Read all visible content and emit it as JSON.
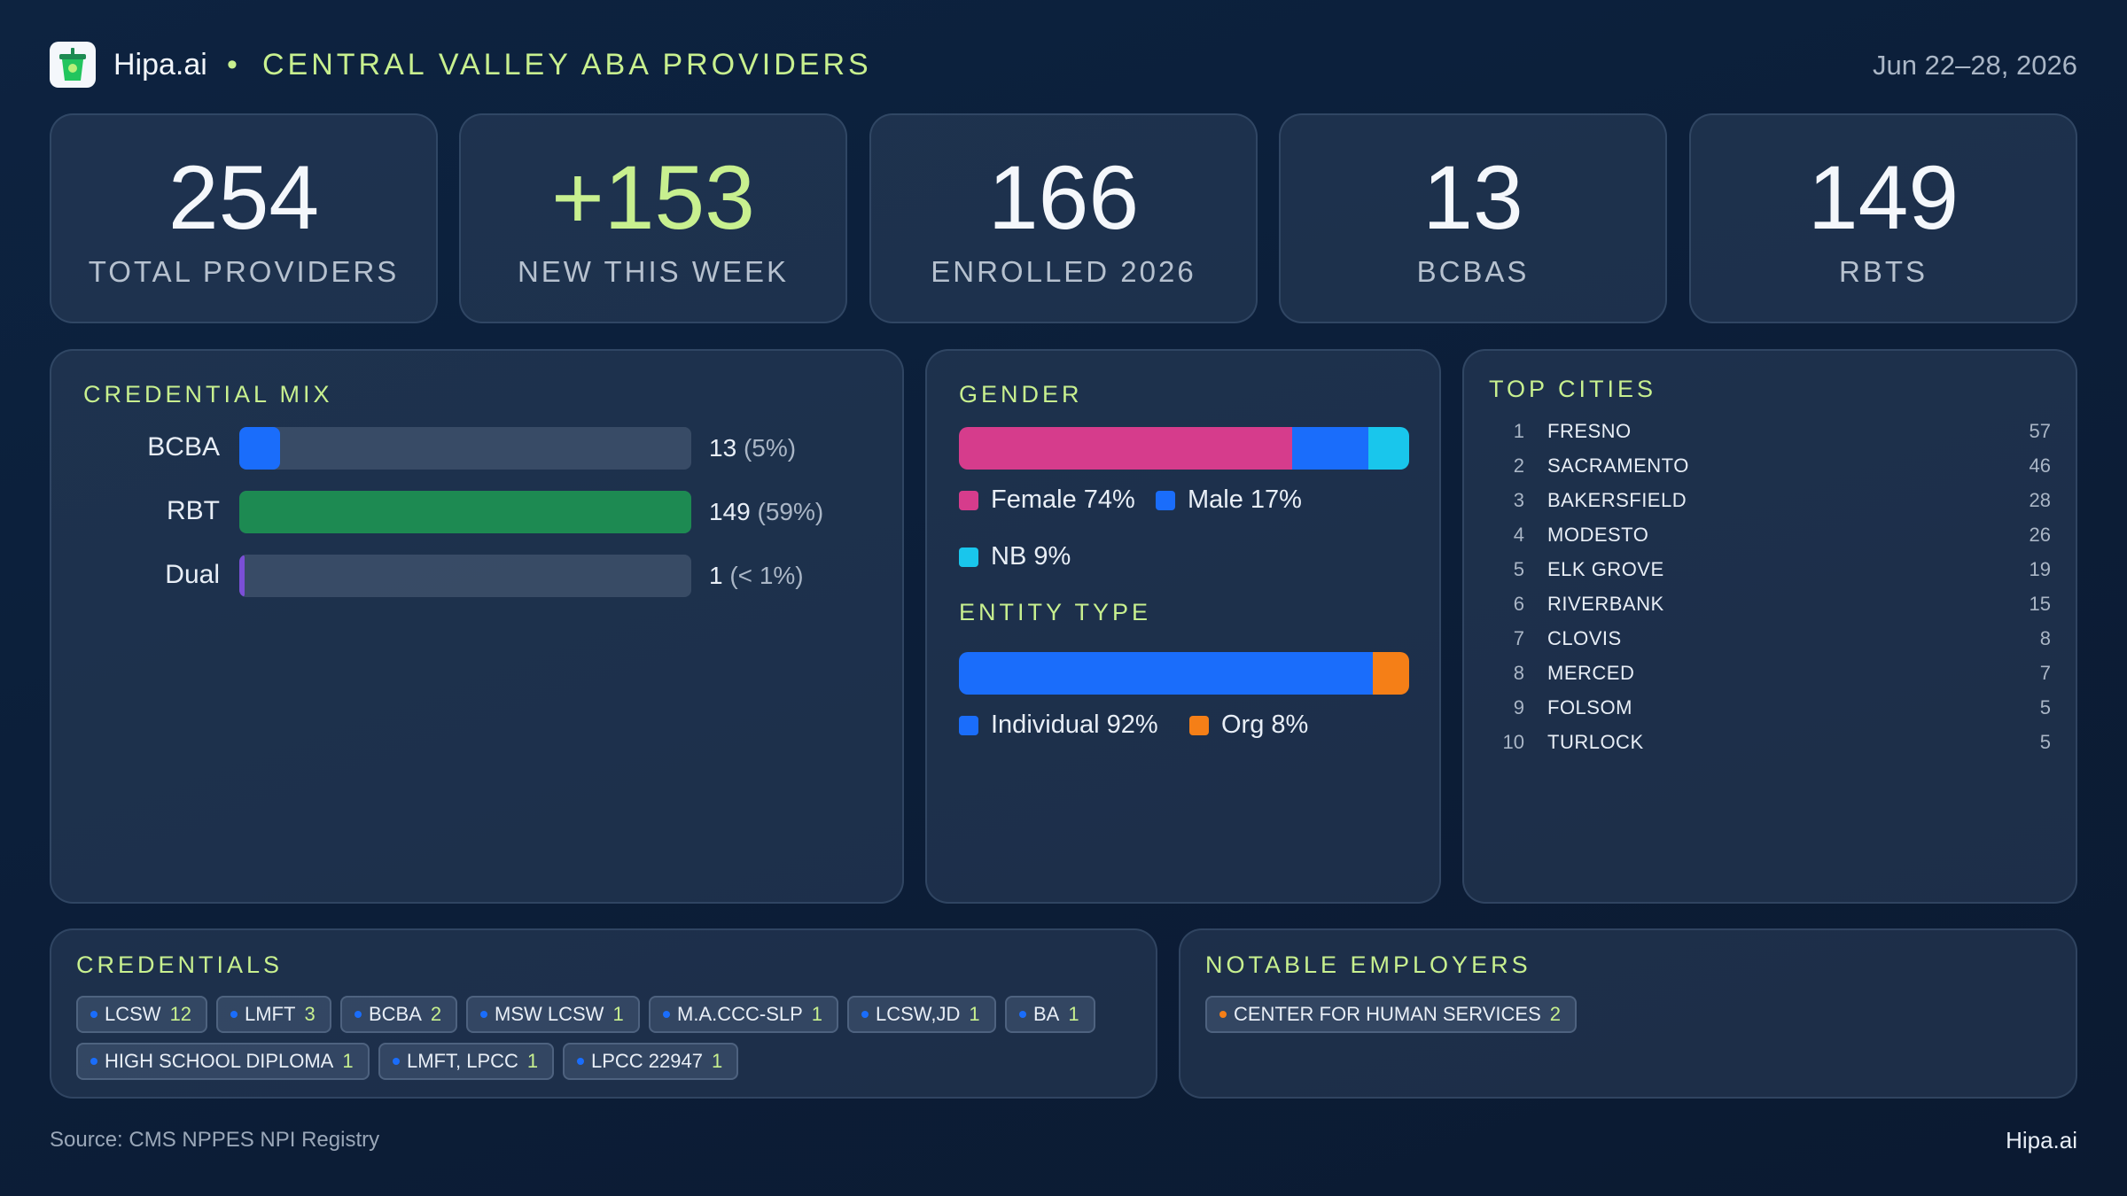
{
  "header": {
    "brand": "Hipa.ai",
    "separator": "•",
    "title": "CENTRAL VALLEY ABA PROVIDERS",
    "date_range": "Jun 22–28, 2026",
    "logo_icon": "cup-icon"
  },
  "kpis": [
    {
      "value": "254",
      "label": "TOTAL PROVIDERS"
    },
    {
      "value": "+153",
      "label": "NEW THIS WEEK"
    },
    {
      "value": "166",
      "label": "ENROLLED 2026"
    },
    {
      "value": "13",
      "label": "BCBAS"
    },
    {
      "value": "149",
      "label": "RBTS"
    }
  ],
  "credential_mix": {
    "title": "CREDENTIAL MIX",
    "rows": [
      {
        "label": "BCBA",
        "count": "13",
        "pct": "(5%)",
        "fraction": 0.09,
        "color": "#1a6dfb"
      },
      {
        "label": "RBT",
        "count": "149",
        "pct": "(59%)",
        "fraction": 1.0,
        "color": "#1d8a52"
      },
      {
        "label": "Dual",
        "count": "1",
        "pct": "(< 1%)",
        "fraction": 0.012,
        "color": "#7b4fd6"
      }
    ]
  },
  "gender": {
    "title": "GENDER",
    "segments": [
      {
        "label": "Female 74%",
        "share": 74,
        "color": "#d63c8c"
      },
      {
        "label": "Male 17%",
        "share": 17,
        "color": "#1a6dfb"
      },
      {
        "label": "NB 9%",
        "share": 9,
        "color": "#19c6ec"
      }
    ]
  },
  "entity_type": {
    "title": "ENTITY TYPE",
    "segments": [
      {
        "label": "Individual 92%",
        "share": 92,
        "color": "#1a6dfb"
      },
      {
        "label": "Org 8%",
        "share": 8,
        "color": "#f57f17"
      }
    ]
  },
  "top_cities": {
    "title": "TOP CITIES",
    "items": [
      {
        "rank": "1",
        "name": "FRESNO",
        "count": "57"
      },
      {
        "rank": "2",
        "name": "SACRAMENTO",
        "count": "46"
      },
      {
        "rank": "3",
        "name": "BAKERSFIELD",
        "count": "28"
      },
      {
        "rank": "4",
        "name": "MODESTO",
        "count": "26"
      },
      {
        "rank": "5",
        "name": "ELK GROVE",
        "count": "19"
      },
      {
        "rank": "6",
        "name": "RIVERBANK",
        "count": "15"
      },
      {
        "rank": "7",
        "name": "CLOVIS",
        "count": "8"
      },
      {
        "rank": "8",
        "name": "MERCED",
        "count": "7"
      },
      {
        "rank": "9",
        "name": "FOLSOM",
        "count": "5"
      },
      {
        "rank": "10",
        "name": "TURLOCK",
        "count": "5"
      }
    ]
  },
  "credentials": {
    "title": "CREDENTIALS",
    "chips": [
      {
        "label": "LCSW",
        "count": "12"
      },
      {
        "label": "LMFT",
        "count": "3"
      },
      {
        "label": "BCBA",
        "count": "2"
      },
      {
        "label": "MSW LCSW",
        "count": "1"
      },
      {
        "label": "M.A.CCC-SLP",
        "count": "1"
      },
      {
        "label": "LCSW,JD",
        "count": "1"
      },
      {
        "label": "BA",
        "count": "1"
      },
      {
        "label": "HIGH SCHOOL DIPLOMA",
        "count": "1"
      },
      {
        "label": "LMFT, LPCC",
        "count": "1"
      },
      {
        "label": "LPCC 22947",
        "count": "1"
      }
    ],
    "dot_color": "#1a6dfb"
  },
  "notable_employers": {
    "title": "NOTABLE EMPLOYERS",
    "chips": [
      {
        "label": "CENTER FOR HUMAN SERVICES",
        "count": "2"
      }
    ],
    "dot_color": "#f57f17"
  },
  "footer": {
    "source": "Source: CMS NPPES NPI Registry",
    "brand": "Hipa.ai"
  },
  "colors": {
    "accent": "#c8f08f",
    "background": "#0c1f3a"
  }
}
